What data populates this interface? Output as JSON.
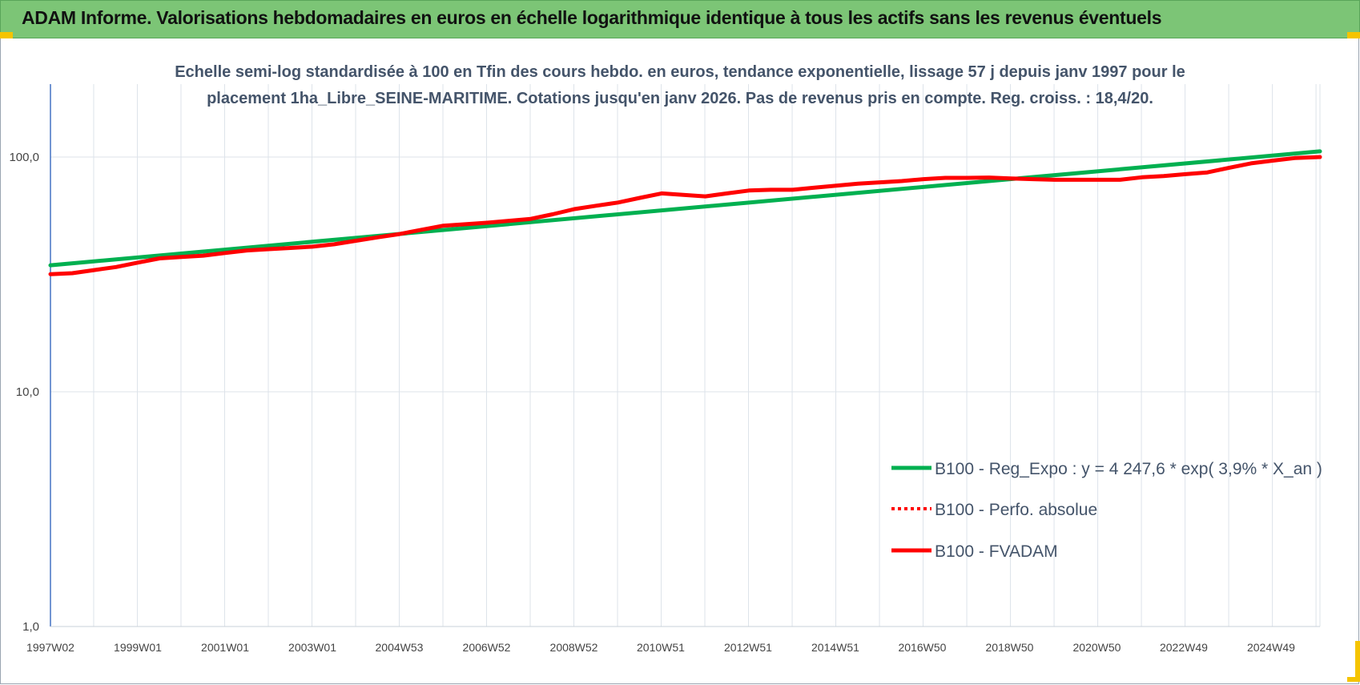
{
  "header": {
    "title": "ADAM Informe. Valorisations hebdomadaires en euros en échelle logarithmique identique à tous les actifs sans les revenus éventuels"
  },
  "colors": {
    "header_bg": "#7cc576",
    "green_series": "#00b050",
    "red_series": "#ff0000",
    "text": "#44546a",
    "corner": "#f5c400"
  },
  "chart_data": {
    "type": "line",
    "title_lines": [
      "Echelle semi-log standardisée à 100 en Tfin des cours hebdo. en euros, tendance exponentielle, lissage 57 j depuis janv 1997 pour le",
      "placement 1ha_Libre_SEINE-MARITIME.  Cotations jusqu'en janv 2026.  Pas de revenus pris en compte. Reg. croiss. : 18,4/20."
    ],
    "y_scale": "log",
    "ylim": [
      1,
      100
    ],
    "y_ticks": [
      {
        "value": 1,
        "label": "1,0"
      },
      {
        "value": 10,
        "label": "10,0"
      },
      {
        "value": 100,
        "label": "100,0"
      }
    ],
    "x_range": [
      1997.0,
      2026.08
    ],
    "x_ticks": [
      {
        "x": 1997.0,
        "label": "1997W02"
      },
      {
        "x": 1999.0,
        "label": "1999W01"
      },
      {
        "x": 2001.0,
        "label": "2001W01"
      },
      {
        "x": 2003.0,
        "label": "2003W01"
      },
      {
        "x": 2004.99,
        "label": "2004W53"
      },
      {
        "x": 2006.99,
        "label": "2006W52"
      },
      {
        "x": 2008.99,
        "label": "2008W52"
      },
      {
        "x": 2010.98,
        "label": "2010W51"
      },
      {
        "x": 2012.98,
        "label": "2012W51"
      },
      {
        "x": 2014.98,
        "label": "2014W51"
      },
      {
        "x": 2016.97,
        "label": "2016W50"
      },
      {
        "x": 2018.97,
        "label": "2018W50"
      },
      {
        "x": 2020.97,
        "label": "2020W50"
      },
      {
        "x": 2022.96,
        "label": "2022W49"
      },
      {
        "x": 2024.96,
        "label": "2024W49"
      }
    ],
    "grid": "vertical and horizontal",
    "legend_position": "bottom-right",
    "series": [
      {
        "name": "B100 - Reg_Expo : y = 4 247,6 * exp( 3,9% *  X_an )",
        "color": "#00b050",
        "style": "solid",
        "points": [
          [
            1997.0,
            34.6
          ],
          [
            2026.08,
            105.7
          ]
        ]
      },
      {
        "name": "B100 - Perfo. absolue",
        "color": "#ff0000",
        "style": "dotted",
        "points": []
      },
      {
        "name": "B100 - FVADAM",
        "color": "#ff0000",
        "style": "solid",
        "points": [
          [
            1997.0,
            31.7
          ],
          [
            1997.5,
            32.0
          ],
          [
            1998.0,
            33.0
          ],
          [
            1998.5,
            34.0
          ],
          [
            1999.0,
            35.5
          ],
          [
            1999.5,
            37.0
          ],
          [
            2000.0,
            37.5
          ],
          [
            2000.5,
            38.0
          ],
          [
            2001.0,
            39.0
          ],
          [
            2001.5,
            40.0
          ],
          [
            2002.0,
            40.5
          ],
          [
            2002.5,
            41.0
          ],
          [
            2003.0,
            41.5
          ],
          [
            2003.5,
            42.5
          ],
          [
            2004.0,
            44.0
          ],
          [
            2004.5,
            45.5
          ],
          [
            2005.0,
            47.0
          ],
          [
            2005.5,
            49.0
          ],
          [
            2006.0,
            51.0
          ],
          [
            2006.5,
            51.7
          ],
          [
            2007.0,
            52.5
          ],
          [
            2007.5,
            53.5
          ],
          [
            2008.0,
            54.5
          ],
          [
            2008.5,
            57.0
          ],
          [
            2009.0,
            60.0
          ],
          [
            2009.5,
            62.0
          ],
          [
            2010.0,
            64.0
          ],
          [
            2010.5,
            67.0
          ],
          [
            2011.0,
            70.0
          ],
          [
            2011.5,
            69.0
          ],
          [
            2012.0,
            68.0
          ],
          [
            2012.5,
            70.0
          ],
          [
            2013.0,
            72.0
          ],
          [
            2013.5,
            72.5
          ],
          [
            2014.0,
            72.5
          ],
          [
            2014.5,
            74.0
          ],
          [
            2015.0,
            75.5
          ],
          [
            2015.5,
            77.0
          ],
          [
            2016.0,
            78.0
          ],
          [
            2016.5,
            79.0
          ],
          [
            2017.0,
            80.5
          ],
          [
            2017.5,
            81.5
          ],
          [
            2018.0,
            81.5
          ],
          [
            2018.5,
            81.8
          ],
          [
            2019.0,
            81.0
          ],
          [
            2019.5,
            80.5
          ],
          [
            2020.0,
            80.0
          ],
          [
            2020.5,
            80.0
          ],
          [
            2021.0,
            80.0
          ],
          [
            2021.5,
            80.0
          ],
          [
            2022.0,
            82.0
          ],
          [
            2022.5,
            83.0
          ],
          [
            2023.0,
            84.5
          ],
          [
            2023.5,
            86.0
          ],
          [
            2024.0,
            90.0
          ],
          [
            2024.5,
            94.0
          ],
          [
            2025.0,
            96.5
          ],
          [
            2025.5,
            99.0
          ],
          [
            2026.08,
            100.0
          ]
        ]
      }
    ]
  }
}
